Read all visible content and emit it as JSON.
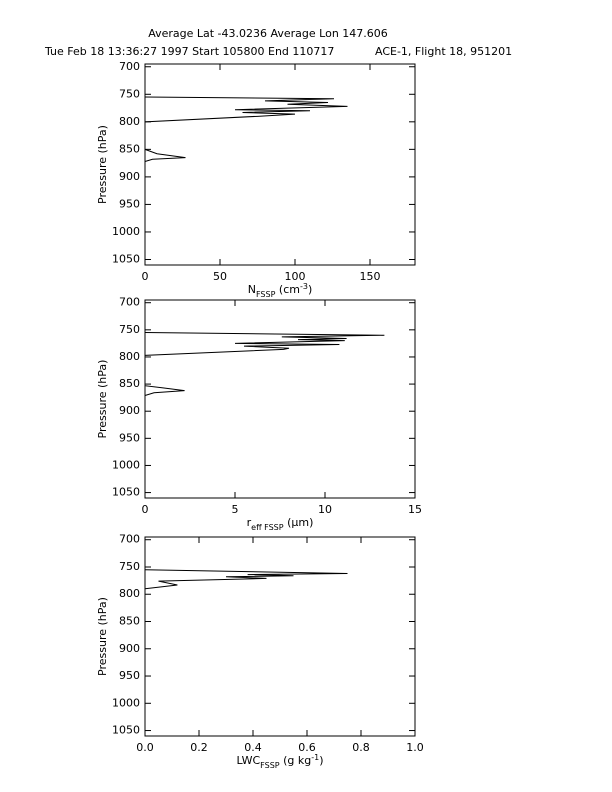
{
  "header": {
    "location": "Average Lat  -43.0236  Average Lon  147.606",
    "time": "Tue Feb 18 13:36:27 1997   Start  105800  End  110717",
    "flight": "ACE-1, Flight 18, 951201"
  },
  "chart_data": [
    {
      "type": "line",
      "ylabel": "Pressure (hPa)",
      "xlabel": {
        "text": "N",
        "sub": "FSSP",
        "after": " (cm",
        "sup": "-3",
        "end": ")"
      },
      "ylim": [
        1060,
        695
      ],
      "yticks": [
        700,
        750,
        800,
        850,
        900,
        950,
        1000,
        1050
      ],
      "xlim": [
        0,
        180
      ],
      "xticks": [
        0,
        50,
        100,
        150
      ],
      "color": "#000000",
      "pressure": [
        755,
        758,
        762,
        765,
        768,
        772,
        778,
        780,
        783,
        786,
        790,
        800,
        850,
        858,
        865,
        868,
        872
      ],
      "values": [
        0,
        126,
        80,
        122,
        95,
        135,
        60,
        110,
        65,
        100,
        75,
        0,
        0,
        8,
        27,
        5,
        0
      ]
    },
    {
      "type": "line",
      "ylabel": "Pressure (hPa)",
      "xlabel": {
        "text": "r",
        "sub": "eff FSSP",
        "after": " (µm)"
      },
      "ylim": [
        1060,
        695
      ],
      "yticks": [
        700,
        750,
        800,
        850,
        900,
        950,
        1000,
        1050
      ],
      "xlim": [
        0,
        15
      ],
      "xticks": [
        0,
        5,
        10,
        15
      ],
      "color": "#000000",
      "pressure": [
        755,
        760,
        763,
        766,
        768,
        770,
        775,
        777,
        780,
        784,
        786,
        797,
        853,
        857,
        862,
        866,
        871
      ],
      "values": [
        0,
        13.3,
        7.6,
        11.2,
        8.5,
        11.1,
        5,
        10.8,
        5.5,
        8,
        7.7,
        0,
        0,
        1,
        2.2,
        0.5,
        0
      ]
    },
    {
      "type": "line",
      "ylabel": "Pressure (hPa)",
      "xlabel": {
        "text": "LWC",
        "sub": "FSSP",
        "after": " (g kg",
        "sup": "-1",
        "end": ")"
      },
      "ylim": [
        1060,
        695
      ],
      "yticks": [
        700,
        750,
        800,
        850,
        900,
        950,
        1000,
        1050
      ],
      "xlim": [
        0,
        1
      ],
      "xticks": [
        {
          "value": 0,
          "label": "0.0"
        },
        0.2,
        0.4,
        0.6,
        0.8,
        {
          "value": 1,
          "label": "1.0"
        }
      ],
      "color": "#000000",
      "pressure": [
        755,
        762,
        764,
        766,
        768,
        771,
        776,
        783,
        790
      ],
      "values": [
        0,
        0.75,
        0.38,
        0.55,
        0.3,
        0.45,
        0.05,
        0.12,
        0
      ]
    }
  ]
}
